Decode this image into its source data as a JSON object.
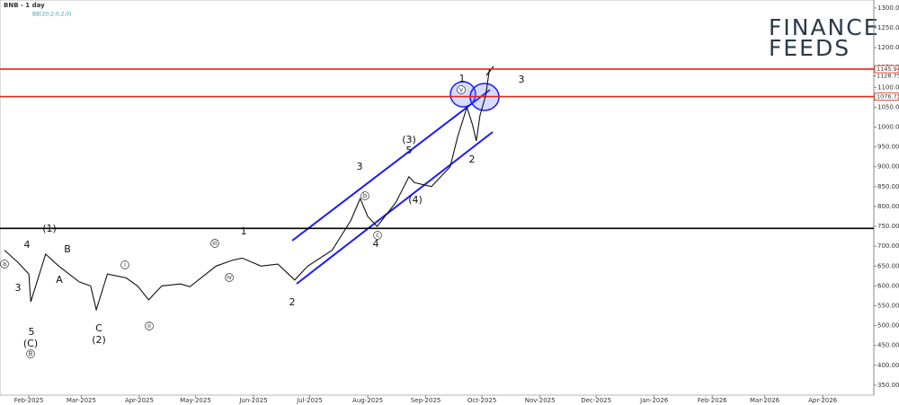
{
  "chart_data": {
    "type": "line",
    "title": "BNB - 1 day",
    "indicator": "BB(20,2,0,2,0)",
    "logo": [
      "FINANCE",
      "FEEDS"
    ],
    "xlim": [
      -15.4,
      451.3
    ],
    "xticks": [
      {
        "value": 0,
        "label": "Feb-2025"
      },
      {
        "value": 28,
        "label": "Mar-2025"
      },
      {
        "value": 59,
        "label": "Apr-2025"
      },
      {
        "value": 89,
        "label": "May-2025"
      },
      {
        "value": 120,
        "label": "Jun-2025"
      },
      {
        "value": 150,
        "label": "Jul-2025"
      },
      {
        "value": 181,
        "label": "Aug-2025"
      },
      {
        "value": 212,
        "label": "Sep-2025"
      },
      {
        "value": 242,
        "label": "Oct-2025"
      },
      {
        "value": 273,
        "label": "Nov-2025"
      },
      {
        "value": 303,
        "label": "Dec-2025"
      },
      {
        "value": 334,
        "label": "Jan-2026"
      },
      {
        "value": 365,
        "label": "Feb-2026"
      },
      {
        "value": 393,
        "label": "Mar-2026"
      },
      {
        "value": 424,
        "label": "Apr-2026"
      }
    ],
    "ylim": [
      325,
      1320
    ],
    "yticks": [
      {
        "value": 350,
        "label": "350.00"
      },
      {
        "value": 400,
        "label": "400.00"
      },
      {
        "value": 450,
        "label": "450.00"
      },
      {
        "value": 500,
        "label": "500.00"
      },
      {
        "value": 550,
        "label": "550.00"
      },
      {
        "value": 600,
        "label": "600.00"
      },
      {
        "value": 650,
        "label": "650.00"
      },
      {
        "value": 700,
        "label": "700.00"
      },
      {
        "value": 750,
        "label": "750.00"
      },
      {
        "value": 800,
        "label": "800.00"
      },
      {
        "value": 850,
        "label": "850.00"
      },
      {
        "value": 900,
        "label": "900.00"
      },
      {
        "value": 950,
        "label": "950.00"
      },
      {
        "value": 1000,
        "label": "1000.00"
      },
      {
        "value": 1050,
        "label": "1050.00"
      },
      {
        "value": 1100,
        "label": "1100.00"
      },
      {
        "value": 1150,
        "label": "1150.00"
      },
      {
        "value": 1200,
        "label": "1200.00"
      },
      {
        "value": 1250,
        "label": "1250.00"
      },
      {
        "value": 1300,
        "label": "1300.00"
      }
    ],
    "series": [
      {
        "color": "#111111",
        "x": [
          -13,
          -6,
          0,
          1,
          9,
          16,
          27,
          33,
          36,
          42,
          52,
          58,
          64,
          71,
          81,
          86,
          100,
          109,
          114,
          124,
          133,
          142,
          149,
          162,
          172,
          177,
          181,
          186,
          196,
          203,
          206,
          215,
          225,
          229,
          234,
          237,
          239,
          241,
          244,
          246
        ],
        "values": [
          690,
          660,
          630,
          560,
          680,
          650,
          610,
          600,
          540,
          630,
          620,
          600,
          565,
          600,
          605,
          598,
          650,
          665,
          670,
          650,
          655,
          615,
          650,
          690,
          765,
          820,
          775,
          750,
          810,
          875,
          860,
          850,
          900,
          975,
          1050,
          1005,
          965,
          1030,
          1080,
          1145
        ]
      }
    ],
    "hlines": [
      {
        "value": 1145.94,
        "label": "1145.94",
        "color": "#e0251b"
      },
      {
        "value": 1076.73,
        "label": "1076.73",
        "color": "#e0251b"
      },
      {
        "value": 745,
        "color": "#000000"
      }
    ],
    "last_price": {
      "value": 1128.75,
      "label": "1128.75"
    },
    "annotations": [
      "(1)",
      "A",
      "B",
      "C",
      "(2)",
      "5",
      "(C)",
      "3",
      "4",
      "1",
      "2",
      "3",
      "(3)",
      "5",
      "4",
      "(4)",
      "1",
      "2",
      "3",
      "v",
      "iii",
      "iv",
      "i",
      "ii",
      "a",
      "b",
      "c",
      "B"
    ]
  }
}
